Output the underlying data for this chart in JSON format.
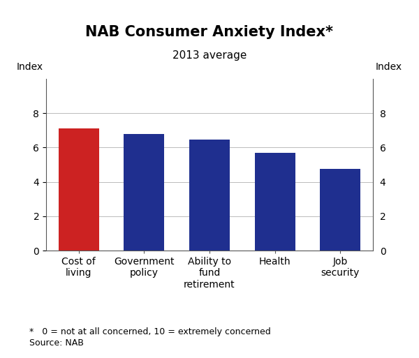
{
  "title": "NAB Consumer Anxiety Index*",
  "subtitle": "2013 average",
  "categories": [
    "Cost of\nliving",
    "Government\npolicy",
    "Ability to\nfund\nretirement",
    "Health",
    "Job\nsecurity"
  ],
  "values": [
    7.1,
    6.8,
    6.45,
    5.7,
    4.75
  ],
  "bar_colors": [
    "#cc2222",
    "#1f2f8f",
    "#1f2f8f",
    "#1f2f8f",
    "#1f2f8f"
  ],
  "index_label": "Index",
  "ylim": [
    0,
    10
  ],
  "yticks": [
    0,
    2,
    4,
    6,
    8
  ],
  "footnote_star": "*   0 = not at all concerned, 10 = extremely concerned",
  "footnote_source": "Source: NAB",
  "background_color": "#ffffff",
  "grid_color": "#bbbbbb",
  "title_fontsize": 15,
  "subtitle_fontsize": 11,
  "tick_label_fontsize": 10,
  "index_label_fontsize": 10,
  "footnote_fontsize": 9
}
